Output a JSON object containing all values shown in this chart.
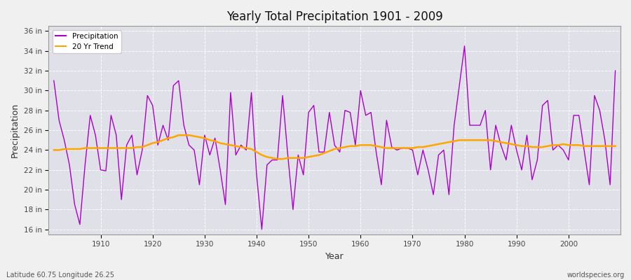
{
  "title": "Yearly Total Precipitation 1901 - 2009",
  "xlabel": "Year",
  "ylabel": "Precipitation",
  "footnote_left": "Latitude 60.75 Longitude 26.25",
  "footnote_right": "worldspecies.org",
  "legend_labels": [
    "Precipitation",
    "20 Yr Trend"
  ],
  "precip_color": "#AA00CC",
  "trend_color": "#FFA500",
  "bg_color": "#F0F0F0",
  "plot_bg_color": "#E0E0E8",
  "ylim": [
    15.5,
    36.5
  ],
  "xlim": [
    1900,
    2010
  ],
  "yticks": [
    16,
    18,
    20,
    22,
    24,
    26,
    28,
    30,
    32,
    34,
    36
  ],
  "ytick_labels": [
    "16 in",
    "18 in",
    "20 in",
    "22 in",
    "24 in",
    "26 in",
    "28 in",
    "30 in",
    "32 in",
    "34 in",
    "36 in"
  ],
  "xticks": [
    1910,
    1920,
    1930,
    1940,
    1950,
    1960,
    1970,
    1980,
    1990,
    2000
  ],
  "years": [
    1901,
    1902,
    1903,
    1904,
    1905,
    1906,
    1907,
    1908,
    1909,
    1910,
    1911,
    1912,
    1913,
    1914,
    1915,
    1916,
    1917,
    1918,
    1919,
    1920,
    1921,
    1922,
    1923,
    1924,
    1925,
    1926,
    1927,
    1928,
    1929,
    1930,
    1931,
    1932,
    1933,
    1934,
    1935,
    1936,
    1937,
    1938,
    1939,
    1940,
    1941,
    1942,
    1943,
    1944,
    1945,
    1946,
    1947,
    1948,
    1949,
    1950,
    1951,
    1952,
    1953,
    1954,
    1955,
    1956,
    1957,
    1958,
    1959,
    1960,
    1961,
    1962,
    1963,
    1964,
    1965,
    1966,
    1967,
    1968,
    1969,
    1970,
    1971,
    1972,
    1973,
    1974,
    1975,
    1976,
    1977,
    1978,
    1979,
    1980,
    1981,
    1982,
    1983,
    1984,
    1985,
    1986,
    1987,
    1988,
    1989,
    1990,
    1991,
    1992,
    1993,
    1994,
    1995,
    1996,
    1997,
    1998,
    1999,
    2000,
    2001,
    2002,
    2003,
    2004,
    2005,
    2006,
    2007,
    2008,
    2009
  ],
  "precip": [
    31.0,
    27.0,
    25.0,
    22.5,
    18.5,
    16.5,
    22.5,
    27.5,
    25.5,
    22.0,
    21.9,
    27.5,
    25.5,
    19.0,
    24.5,
    25.5,
    21.5,
    24.0,
    29.5,
    28.5,
    24.5,
    26.5,
    25.0,
    30.5,
    31.0,
    26.5,
    24.5,
    24.0,
    20.5,
    25.5,
    23.5,
    25.2,
    22.0,
    18.5,
    29.8,
    23.5,
    24.5,
    24.0,
    29.8,
    21.5,
    16.0,
    22.5,
    23.0,
    23.0,
    29.5,
    23.5,
    18.0,
    23.5,
    21.5,
    27.8,
    28.5,
    23.8,
    23.8,
    27.8,
    24.5,
    23.8,
    28.0,
    27.8,
    24.5,
    30.0,
    27.5,
    27.8,
    23.8,
    20.5,
    27.0,
    24.3,
    24.0,
    24.2,
    24.2,
    24.0,
    21.5,
    24.0,
    22.0,
    19.5,
    23.5,
    24.0,
    19.5,
    26.5,
    30.5,
    34.5,
    26.5,
    26.5,
    26.5,
    28.0,
    22.0,
    26.5,
    24.5,
    23.0,
    26.5,
    24.0,
    22.0,
    25.5,
    21.0,
    23.0,
    28.5,
    29.0,
    24.0,
    24.5,
    24.0,
    23.0,
    27.5,
    27.5,
    24.0,
    20.5,
    29.5,
    28.0,
    25.0,
    20.5,
    32.0
  ],
  "trend": [
    24.0,
    24.0,
    24.1,
    24.1,
    24.1,
    24.1,
    24.2,
    24.2,
    24.2,
    24.2,
    24.2,
    24.2,
    24.2,
    24.2,
    24.2,
    24.2,
    24.3,
    24.3,
    24.5,
    24.7,
    24.8,
    25.0,
    25.2,
    25.3,
    25.5,
    25.5,
    25.5,
    25.4,
    25.3,
    25.2,
    25.0,
    24.9,
    24.7,
    24.6,
    24.5,
    24.4,
    24.3,
    24.2,
    24.1,
    23.8,
    23.5,
    23.3,
    23.2,
    23.1,
    23.1,
    23.2,
    23.2,
    23.2,
    23.2,
    23.3,
    23.4,
    23.5,
    23.7,
    23.9,
    24.1,
    24.2,
    24.3,
    24.4,
    24.4,
    24.5,
    24.5,
    24.5,
    24.4,
    24.3,
    24.2,
    24.2,
    24.2,
    24.2,
    24.2,
    24.2,
    24.3,
    24.3,
    24.4,
    24.5,
    24.6,
    24.7,
    24.8,
    24.9,
    25.0,
    25.0,
    25.0,
    25.0,
    25.0,
    25.0,
    25.0,
    24.9,
    24.8,
    24.7,
    24.6,
    24.5,
    24.4,
    24.4,
    24.3,
    24.3,
    24.3,
    24.4,
    24.5,
    24.5,
    24.6,
    24.5,
    24.5,
    24.5,
    24.4,
    24.4,
    24.4,
    24.4,
    24.4,
    24.4,
    24.4
  ]
}
